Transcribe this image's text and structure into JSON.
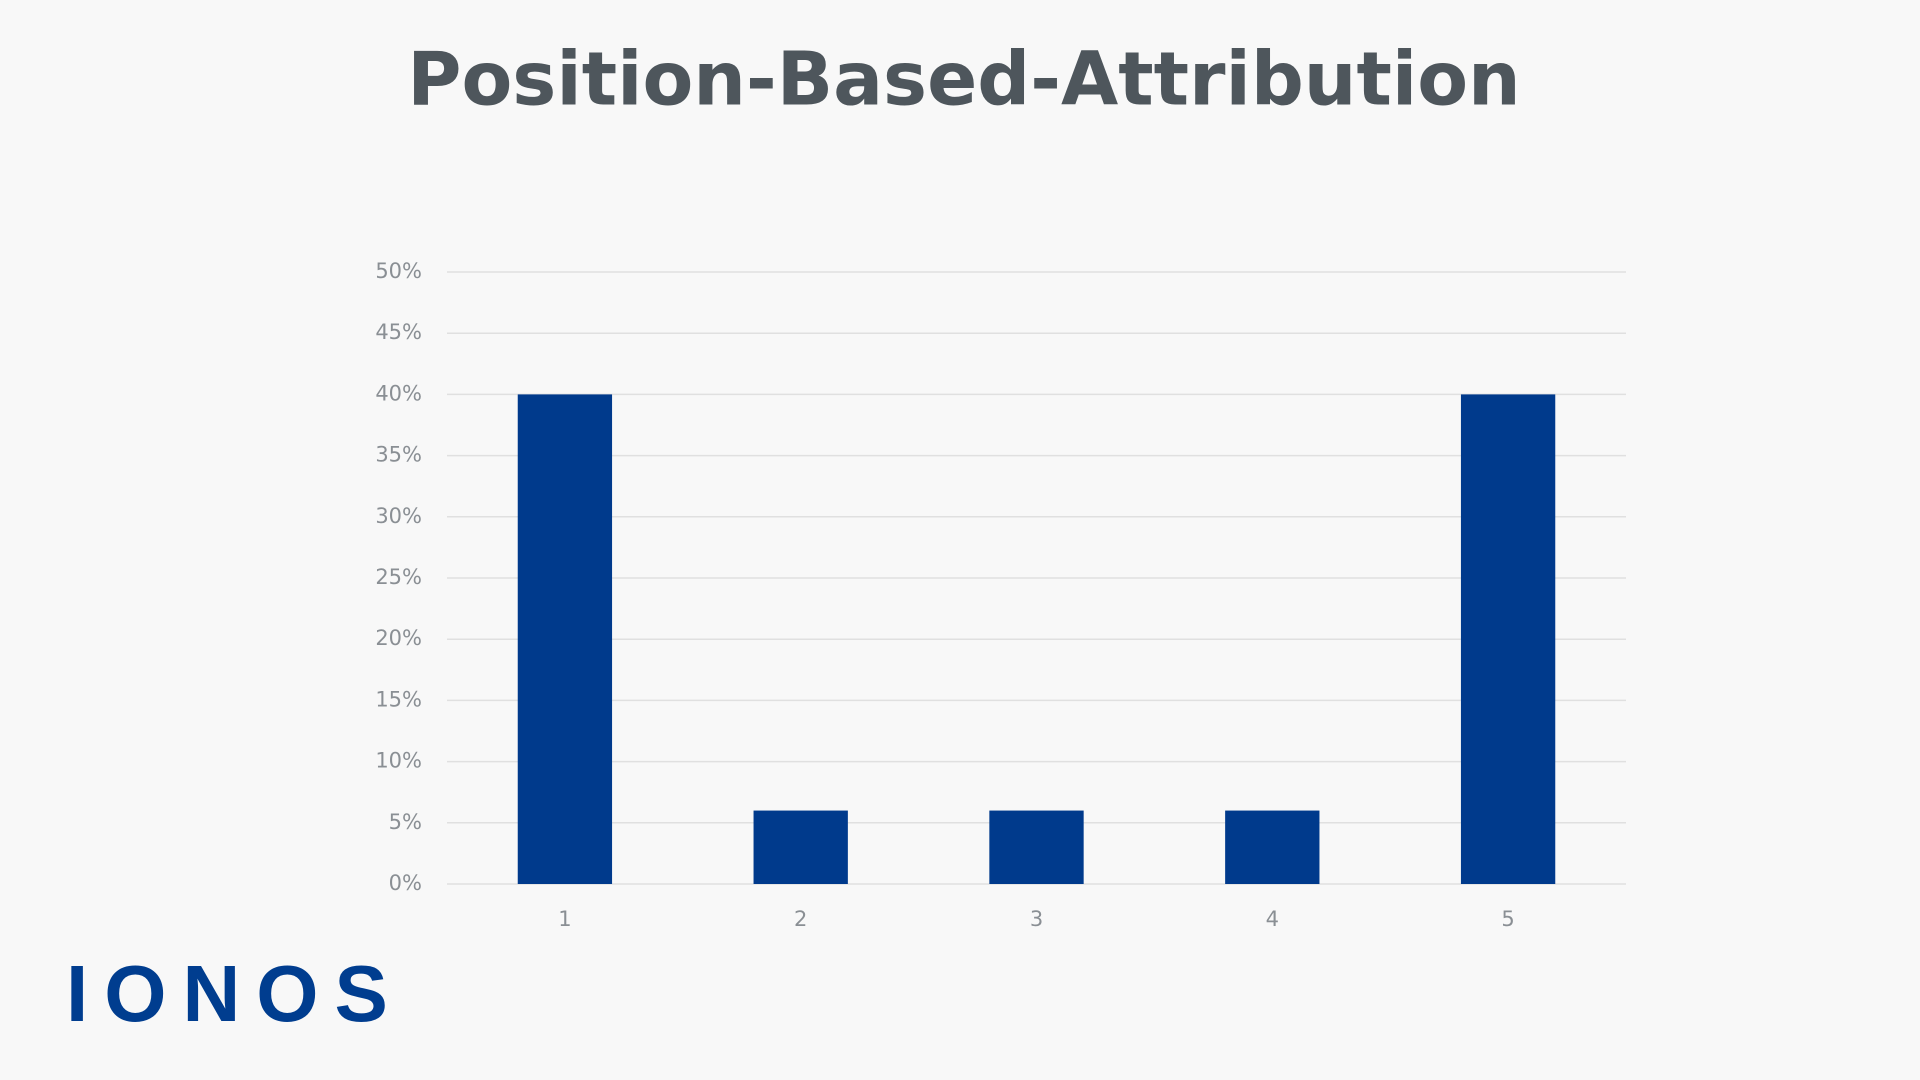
{
  "chart_data": {
    "type": "bar",
    "title": "Position-Based-Attribution",
    "categories": [
      "1",
      "2",
      "3",
      "4",
      "5"
    ],
    "values": [
      40,
      6,
      6,
      6,
      40
    ],
    "color": "#003a8c",
    "ylim": [
      0,
      50
    ],
    "yticks": [
      {
        "value": 0,
        "label": "0%"
      },
      {
        "value": 5,
        "label": "5%"
      },
      {
        "value": 10,
        "label": "10%"
      },
      {
        "value": 15,
        "label": "15%"
      },
      {
        "value": 20,
        "label": "20%"
      },
      {
        "value": 25,
        "label": "25%"
      },
      {
        "value": 30,
        "label": "30%"
      },
      {
        "value": 35,
        "label": "35%"
      },
      {
        "value": 40,
        "label": "40%"
      },
      {
        "value": 45,
        "label": "45%"
      },
      {
        "value": 50,
        "label": "50%"
      }
    ],
    "grid": true
  },
  "logo": "IONOS"
}
